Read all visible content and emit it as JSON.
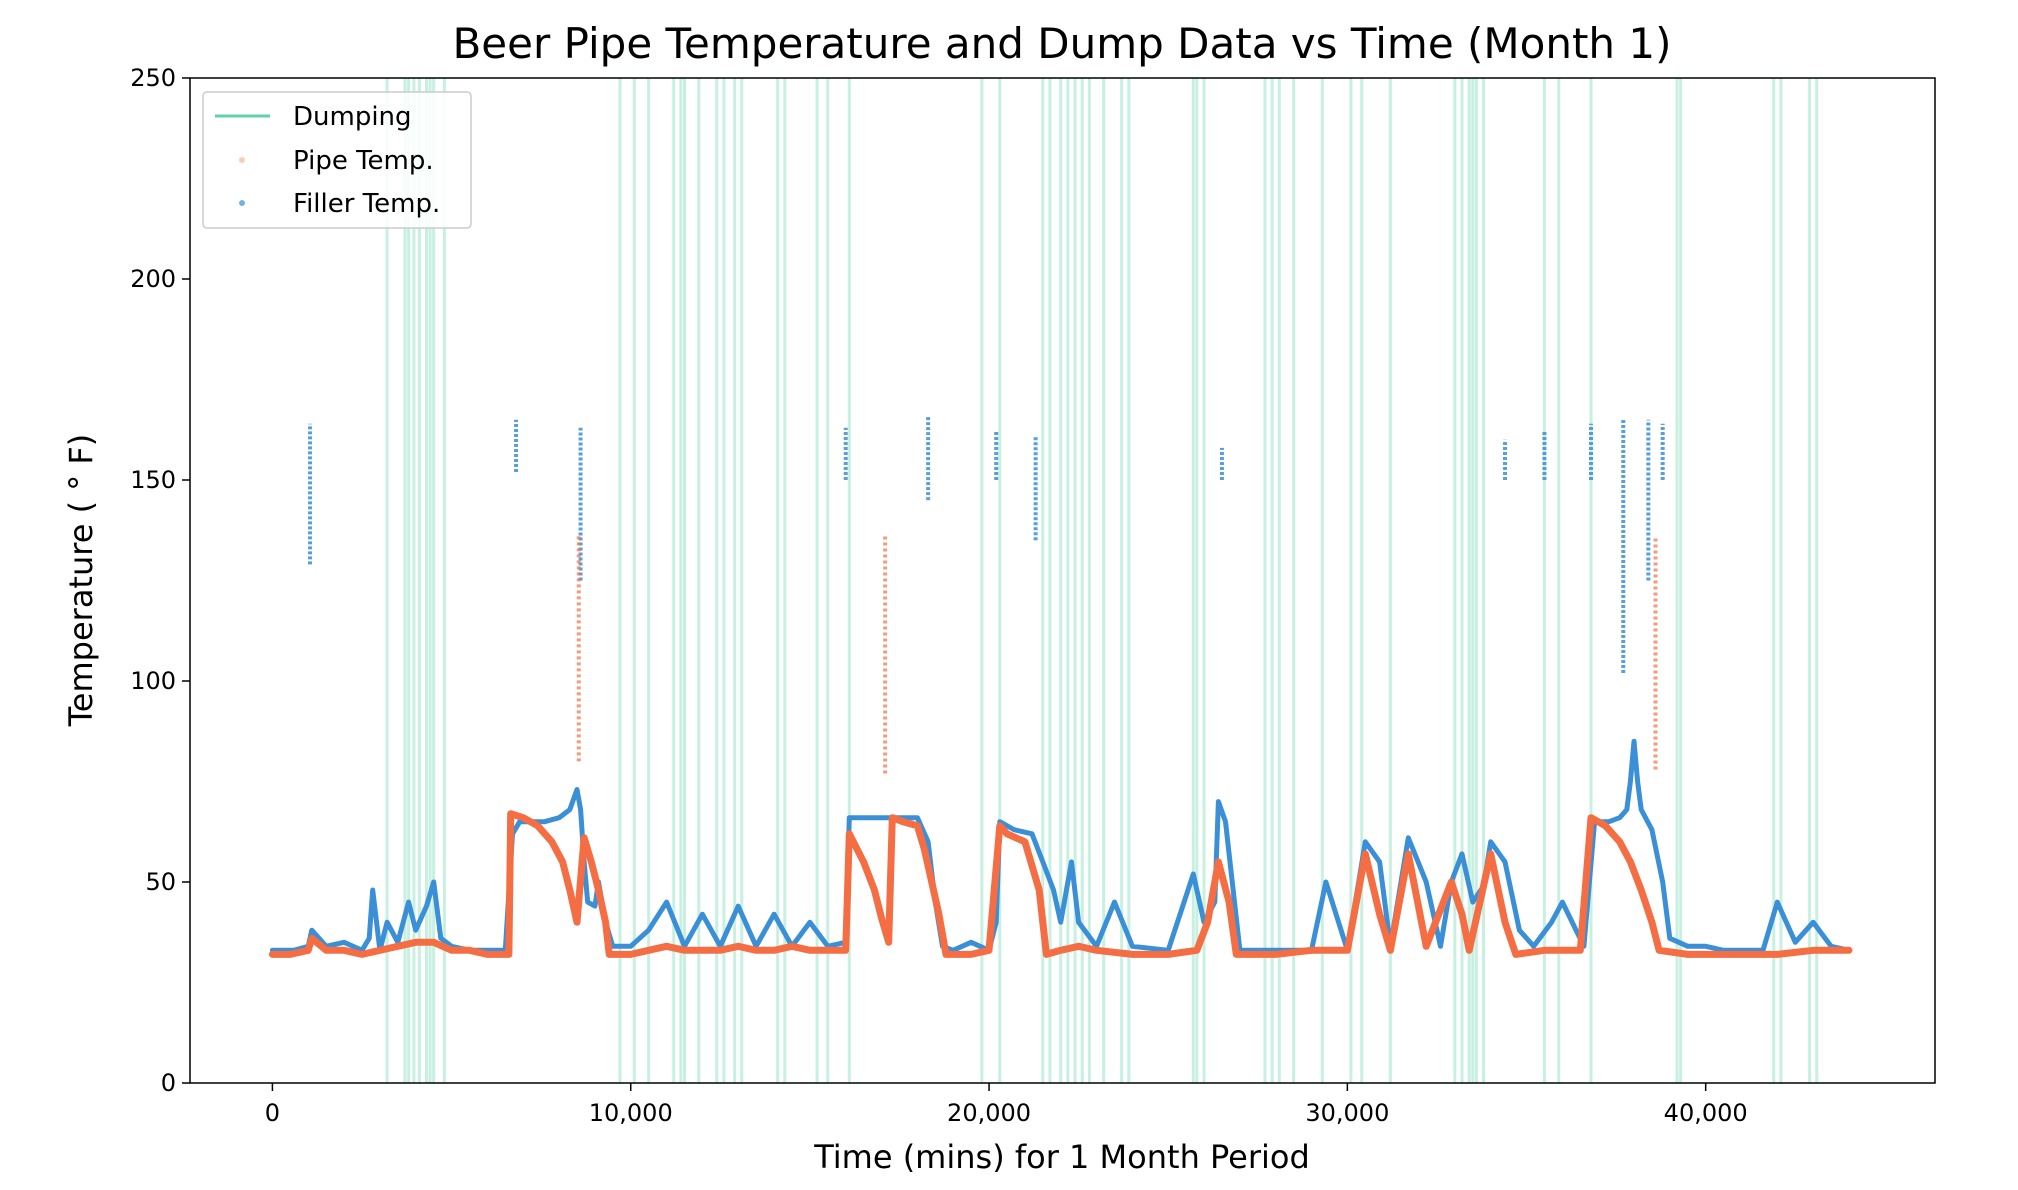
{
  "chart_data": {
    "type": "scatter",
    "title": "Beer Pipe Temperature and Dump Data vs Time (Month 1)",
    "xlabel": "Time (mins) for 1 Month Period",
    "ylabel": "Temperature ( ° F)",
    "xlim": [
      -2300,
      46400
    ],
    "ylim": [
      0,
      250
    ],
    "x_ticks": [
      0,
      10000,
      20000,
      30000,
      40000
    ],
    "x_tick_labels": [
      "0",
      "10,000",
      "20,000",
      "30,000",
      "40,000"
    ],
    "y_ticks": [
      0,
      50,
      100,
      150,
      200,
      250
    ],
    "y_tick_labels": [
      "0",
      "50",
      "100",
      "150",
      "200",
      "250"
    ],
    "grid": false,
    "legend_position": "top-left",
    "colors": {
      "dumping": "#5fd3a7",
      "pipe": "#f46d43",
      "filler": "#3a8fd6"
    },
    "legend": [
      "Dumping",
      "Pipe Temp.",
      "Filler Temp."
    ],
    "dumping_times": [
      3200,
      3700,
      3800,
      3950,
      4100,
      4300,
      4400,
      4500,
      4800,
      9700,
      10100,
      10500,
      11200,
      11400,
      11500,
      11900,
      12400,
      12600,
      12900,
      13100,
      14100,
      14300,
      15200,
      15500,
      16100,
      19800,
      20300,
      21500,
      21700,
      22000,
      22200,
      22400,
      22600,
      22800,
      23200,
      23700,
      23900,
      25700,
      25800,
      26000,
      27700,
      27900,
      28100,
      28500,
      29300,
      30100,
      30400,
      31200,
      33000,
      33200,
      33400,
      33500,
      33600,
      33800,
      35500,
      35900,
      36800,
      39200,
      39300,
      41900,
      42100,
      42900,
      43100
    ],
    "series": [
      {
        "name": "Filler Temp.",
        "points": [
          [
            0,
            33
          ],
          [
            600,
            33
          ],
          [
            1000,
            34
          ],
          [
            1100,
            38
          ],
          [
            1500,
            34
          ],
          [
            2000,
            35
          ],
          [
            2500,
            33
          ],
          [
            2700,
            36
          ],
          [
            2800,
            48
          ],
          [
            3000,
            33
          ],
          [
            3200,
            40
          ],
          [
            3500,
            35
          ],
          [
            3800,
            45
          ],
          [
            4000,
            38
          ],
          [
            4300,
            44
          ],
          [
            4500,
            50
          ],
          [
            4700,
            36
          ],
          [
            5000,
            34
          ],
          [
            5500,
            33
          ],
          [
            6000,
            33
          ],
          [
            6500,
            33
          ],
          [
            6700,
            62
          ],
          [
            6900,
            65
          ],
          [
            7200,
            65
          ],
          [
            7600,
            65
          ],
          [
            8000,
            66
          ],
          [
            8300,
            68
          ],
          [
            8500,
            73
          ],
          [
            8600,
            68
          ],
          [
            8700,
            55
          ],
          [
            8800,
            45
          ],
          [
            9000,
            44
          ],
          [
            9100,
            50
          ],
          [
            9300,
            40
          ],
          [
            9500,
            34
          ],
          [
            10000,
            34
          ],
          [
            10500,
            38
          ],
          [
            11000,
            45
          ],
          [
            11500,
            34
          ],
          [
            12000,
            42
          ],
          [
            12500,
            34
          ],
          [
            13000,
            44
          ],
          [
            13500,
            34
          ],
          [
            14000,
            42
          ],
          [
            14500,
            34
          ],
          [
            15000,
            40
          ],
          [
            15500,
            34
          ],
          [
            16000,
            35
          ],
          [
            16100,
            66
          ],
          [
            16500,
            66
          ],
          [
            17000,
            66
          ],
          [
            17500,
            66
          ],
          [
            18000,
            66
          ],
          [
            18300,
            60
          ],
          [
            18500,
            45
          ],
          [
            18700,
            34
          ],
          [
            19000,
            33
          ],
          [
            19500,
            35
          ],
          [
            20000,
            33
          ],
          [
            20200,
            40
          ],
          [
            20300,
            65
          ],
          [
            20700,
            63
          ],
          [
            21200,
            62
          ],
          [
            21500,
            55
          ],
          [
            21800,
            48
          ],
          [
            22000,
            40
          ],
          [
            22300,
            55
          ],
          [
            22500,
            40
          ],
          [
            23000,
            34
          ],
          [
            23500,
            45
          ],
          [
            24000,
            34
          ],
          [
            25000,
            33
          ],
          [
            25700,
            52
          ],
          [
            26000,
            40
          ],
          [
            26300,
            45
          ],
          [
            26400,
            70
          ],
          [
            26600,
            65
          ],
          [
            27000,
            33
          ],
          [
            28000,
            33
          ],
          [
            29000,
            33
          ],
          [
            29400,
            50
          ],
          [
            30000,
            33
          ],
          [
            30500,
            60
          ],
          [
            30900,
            55
          ],
          [
            31200,
            34
          ],
          [
            31700,
            61
          ],
          [
            32200,
            50
          ],
          [
            32600,
            34
          ],
          [
            32900,
            50
          ],
          [
            33200,
            57
          ],
          [
            33500,
            45
          ],
          [
            33800,
            49
          ],
          [
            34000,
            60
          ],
          [
            34400,
            55
          ],
          [
            34800,
            38
          ],
          [
            35200,
            34
          ],
          [
            35700,
            40
          ],
          [
            36000,
            45
          ],
          [
            36600,
            34
          ],
          [
            36900,
            65
          ],
          [
            37300,
            65
          ],
          [
            37600,
            66
          ],
          [
            37800,
            68
          ],
          [
            37900,
            75
          ],
          [
            38000,
            85
          ],
          [
            38100,
            75
          ],
          [
            38200,
            68
          ],
          [
            38500,
            63
          ],
          [
            38800,
            50
          ],
          [
            39000,
            36
          ],
          [
            39500,
            34
          ],
          [
            40000,
            34
          ],
          [
            40500,
            33
          ],
          [
            41000,
            33
          ],
          [
            41600,
            33
          ],
          [
            42000,
            45
          ],
          [
            42500,
            35
          ],
          [
            43000,
            40
          ],
          [
            43500,
            34
          ],
          [
            44000,
            33
          ]
        ]
      },
      {
        "name": "Pipe Temp.",
        "points": [
          [
            0,
            32
          ],
          [
            500,
            32
          ],
          [
            1000,
            33
          ],
          [
            1100,
            36
          ],
          [
            1500,
            33
          ],
          [
            2000,
            33
          ],
          [
            2500,
            32
          ],
          [
            3000,
            33
          ],
          [
            3500,
            34
          ],
          [
            4000,
            35
          ],
          [
            4500,
            35
          ],
          [
            5000,
            33
          ],
          [
            5500,
            33
          ],
          [
            6000,
            32
          ],
          [
            6500,
            32
          ],
          [
            6600,
            32
          ],
          [
            6650,
            67
          ],
          [
            7000,
            66
          ],
          [
            7400,
            64
          ],
          [
            7800,
            60
          ],
          [
            8100,
            55
          ],
          [
            8300,
            48
          ],
          [
            8500,
            40
          ],
          [
            8700,
            61
          ],
          [
            8900,
            55
          ],
          [
            9100,
            48
          ],
          [
            9300,
            40
          ],
          [
            9400,
            32
          ],
          [
            10000,
            32
          ],
          [
            10500,
            33
          ],
          [
            11000,
            34
          ],
          [
            11500,
            33
          ],
          [
            12000,
            33
          ],
          [
            12500,
            33
          ],
          [
            13000,
            34
          ],
          [
            13500,
            33
          ],
          [
            14000,
            33
          ],
          [
            14500,
            34
          ],
          [
            15000,
            33
          ],
          [
            15500,
            33
          ],
          [
            16000,
            33
          ],
          [
            16100,
            62
          ],
          [
            16500,
            55
          ],
          [
            16800,
            48
          ],
          [
            17000,
            41
          ],
          [
            17200,
            35
          ],
          [
            17300,
            66
          ],
          [
            17600,
            65
          ],
          [
            18000,
            64
          ],
          [
            18200,
            58
          ],
          [
            18400,
            50
          ],
          [
            18600,
            42
          ],
          [
            18800,
            32
          ],
          [
            19500,
            32
          ],
          [
            20000,
            33
          ],
          [
            20300,
            64
          ],
          [
            20500,
            62
          ],
          [
            21000,
            60
          ],
          [
            21400,
            48
          ],
          [
            21600,
            32
          ],
          [
            22000,
            33
          ],
          [
            22500,
            34
          ],
          [
            23000,
            33
          ],
          [
            24000,
            32
          ],
          [
            25000,
            32
          ],
          [
            25800,
            33
          ],
          [
            26100,
            40
          ],
          [
            26400,
            55
          ],
          [
            26700,
            45
          ],
          [
            26900,
            32
          ],
          [
            28000,
            32
          ],
          [
            29000,
            33
          ],
          [
            30000,
            33
          ],
          [
            30500,
            57
          ],
          [
            30900,
            42
          ],
          [
            31200,
            33
          ],
          [
            31700,
            57
          ],
          [
            32200,
            34
          ],
          [
            32900,
            50
          ],
          [
            33200,
            42
          ],
          [
            33400,
            33
          ],
          [
            34000,
            57
          ],
          [
            34400,
            40
          ],
          [
            34700,
            32
          ],
          [
            35500,
            33
          ],
          [
            36500,
            33
          ],
          [
            36800,
            66
          ],
          [
            37200,
            64
          ],
          [
            37600,
            60
          ],
          [
            37900,
            55
          ],
          [
            38200,
            48
          ],
          [
            38500,
            40
          ],
          [
            38700,
            33
          ],
          [
            39500,
            32
          ],
          [
            40000,
            32
          ],
          [
            41000,
            32
          ],
          [
            42000,
            32
          ],
          [
            43000,
            33
          ],
          [
            44000,
            33
          ]
        ]
      }
    ],
    "filler_spikes": [
      [
        1050,
        129,
        164
      ],
      [
        6800,
        152,
        165
      ],
      [
        8600,
        125,
        163
      ],
      [
        16000,
        150,
        163
      ],
      [
        18300,
        145,
        166
      ],
      [
        20200,
        150,
        162
      ],
      [
        21300,
        135,
        161
      ],
      [
        26500,
        150,
        158
      ],
      [
        34400,
        150,
        160
      ],
      [
        35500,
        150,
        162
      ],
      [
        36800,
        150,
        164
      ],
      [
        37700,
        102,
        165
      ],
      [
        38400,
        125,
        165
      ],
      [
        38800,
        150,
        164
      ]
    ],
    "pipe_spikes": [
      [
        8550,
        80,
        136
      ],
      [
        17100,
        77,
        136
      ],
      [
        38600,
        78,
        136
      ]
    ]
  }
}
